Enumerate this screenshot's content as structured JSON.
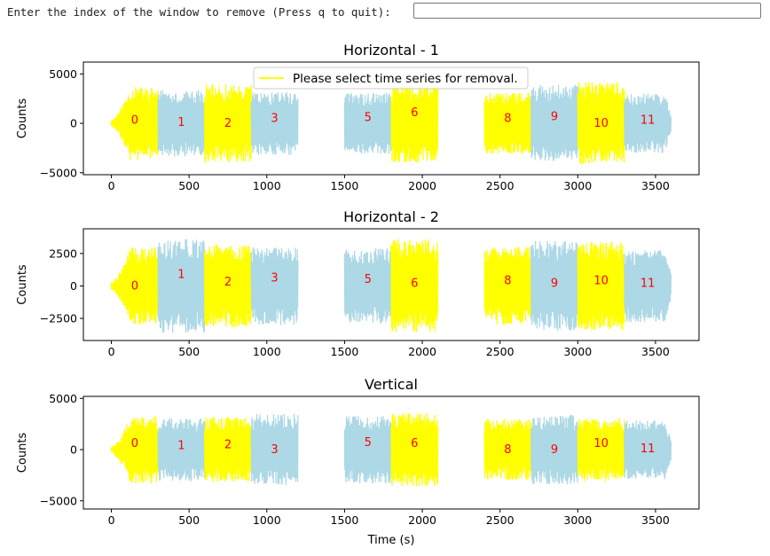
{
  "prompt": {
    "label": "Enter the index of the window to remove (Press q to quit):",
    "input_value": "",
    "input_placeholder": ""
  },
  "colors": {
    "window_even": "#ffff00",
    "window_odd": "#add8e6",
    "index_label": "#ff0000",
    "legend_line": "#ffff00"
  },
  "chart_data": [
    {
      "type": "line",
      "title": "Horizontal - 1",
      "xlabel": "",
      "ylabel": "Counts",
      "xlim": [
        -180,
        3780
      ],
      "ylim": [
        -5200,
        6200
      ],
      "xticks": [
        0,
        500,
        1000,
        1500,
        2000,
        2500,
        3000,
        3500
      ],
      "yticks": [
        -5000,
        0,
        5000
      ],
      "ytick_labels": [
        "−5000",
        "0",
        "5000"
      ],
      "legend": {
        "label": "Please select time series for removal.",
        "loc": "upper center"
      },
      "windows": [
        {
          "index": 0,
          "start": 0,
          "end": 300,
          "amp": 3700,
          "label_y": 300
        },
        {
          "index": 1,
          "start": 300,
          "end": 600,
          "amp": 3400,
          "label_y": 100
        },
        {
          "index": 2,
          "start": 600,
          "end": 900,
          "amp": 4000,
          "label_y": 0
        },
        {
          "index": 3,
          "start": 900,
          "end": 1200,
          "amp": 3200,
          "label_y": 500
        },
        {
          "index": 5,
          "start": 1500,
          "end": 1800,
          "amp": 3100,
          "label_y": 600
        },
        {
          "index": 6,
          "start": 1800,
          "end": 2100,
          "amp": 4000,
          "label_y": 1100
        },
        {
          "index": 8,
          "start": 2400,
          "end": 2700,
          "amp": 3100,
          "label_y": 500
        },
        {
          "index": 9,
          "start": 2700,
          "end": 3000,
          "amp": 3900,
          "label_y": 700
        },
        {
          "index": 10,
          "start": 3000,
          "end": 3300,
          "amp": 4200,
          "label_y": 0
        },
        {
          "index": 11,
          "start": 3300,
          "end": 3600,
          "amp": 3000,
          "label_y": 300
        }
      ]
    },
    {
      "type": "line",
      "title": "Horizontal - 2",
      "xlabel": "",
      "ylabel": "Counts",
      "xlim": [
        -180,
        3780
      ],
      "ylim": [
        -4200,
        4400
      ],
      "xticks": [
        0,
        500,
        1000,
        1500,
        2000,
        2500,
        3000,
        3500
      ],
      "yticks": [
        -2500,
        0,
        2500
      ],
      "ytick_labels": [
        "−2500",
        "0",
        "2500"
      ],
      "windows": [
        {
          "index": 0,
          "start": 0,
          "end": 300,
          "amp": 3000,
          "label_y": 0
        },
        {
          "index": 1,
          "start": 300,
          "end": 600,
          "amp": 3600,
          "label_y": 900
        },
        {
          "index": 2,
          "start": 600,
          "end": 900,
          "amp": 3200,
          "label_y": 300
        },
        {
          "index": 3,
          "start": 900,
          "end": 1200,
          "amp": 3000,
          "label_y": 600
        },
        {
          "index": 5,
          "start": 1500,
          "end": 1800,
          "amp": 2900,
          "label_y": 500
        },
        {
          "index": 6,
          "start": 1800,
          "end": 2100,
          "amp": 3600,
          "label_y": 200
        },
        {
          "index": 8,
          "start": 2400,
          "end": 2700,
          "amp": 3000,
          "label_y": 400
        },
        {
          "index": 9,
          "start": 2700,
          "end": 3000,
          "amp": 3500,
          "label_y": 200
        },
        {
          "index": 10,
          "start": 3000,
          "end": 3300,
          "amp": 3400,
          "label_y": 400
        },
        {
          "index": 11,
          "start": 3300,
          "end": 3600,
          "amp": 2800,
          "label_y": 200
        }
      ]
    },
    {
      "type": "line",
      "title": "Vertical",
      "xlabel": "Time (s)",
      "ylabel": "Counts",
      "xlim": [
        -180,
        3780
      ],
      "ylim": [
        -5800,
        5200
      ],
      "xticks": [
        0,
        500,
        1000,
        1500,
        2000,
        2500,
        3000,
        3500
      ],
      "yticks": [
        -5000,
        0,
        5000
      ],
      "ytick_labels": [
        "−5000",
        "0",
        "5000"
      ],
      "windows": [
        {
          "index": 0,
          "start": 0,
          "end": 300,
          "amp": 3300,
          "label_y": 600
        },
        {
          "index": 1,
          "start": 300,
          "end": 600,
          "amp": 3100,
          "label_y": 400
        },
        {
          "index": 2,
          "start": 600,
          "end": 900,
          "amp": 3200,
          "label_y": 500
        },
        {
          "index": 3,
          "start": 900,
          "end": 1200,
          "amp": 3500,
          "label_y": 0
        },
        {
          "index": 5,
          "start": 1500,
          "end": 1800,
          "amp": 3300,
          "label_y": 700
        },
        {
          "index": 6,
          "start": 1800,
          "end": 2100,
          "amp": 3600,
          "label_y": 600
        },
        {
          "index": 8,
          "start": 2400,
          "end": 2700,
          "amp": 3000,
          "label_y": 0
        },
        {
          "index": 9,
          "start": 2700,
          "end": 3000,
          "amp": 3400,
          "label_y": 0
        },
        {
          "index": 10,
          "start": 3000,
          "end": 3300,
          "amp": 3100,
          "label_y": 600
        },
        {
          "index": 11,
          "start": 3300,
          "end": 3600,
          "amp": 2900,
          "label_y": 100
        }
      ]
    }
  ]
}
